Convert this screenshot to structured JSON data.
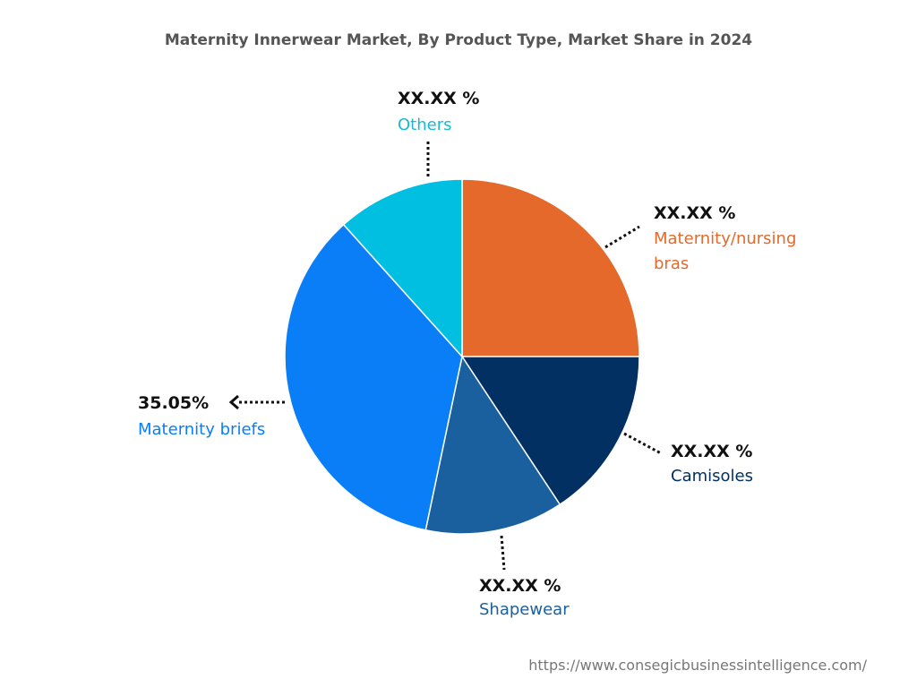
{
  "chart_data": {
    "type": "pie",
    "title": "Maternity Innerwear Market, By Product Type, Market Share in 2024",
    "start_angle": "12 o'clock",
    "direction": "clockwise",
    "slices": [
      {
        "name": "Maternity/nursing bras",
        "label_lines": [
          "Maternity/nursing",
          "bras"
        ],
        "value_label": "XX.XX %",
        "value": 25.0,
        "color": "#E4692A"
      },
      {
        "name": "Camisoles",
        "label_lines": [
          "Camisoles"
        ],
        "value_label": "XX.XX %",
        "value": 15.7,
        "color": "#023063"
      },
      {
        "name": "Shapewear",
        "label_lines": [
          "Shapewear"
        ],
        "value_label": "XX.XX %",
        "value": 12.6,
        "color": "#1A609E"
      },
      {
        "name": "Maternity briefs",
        "label_lines": [
          "Maternity briefs"
        ],
        "value_label": "35.05%",
        "value": 35.05,
        "color": "#0A7EF7"
      },
      {
        "name": "Others",
        "label_lines": [
          "Others"
        ],
        "value_label": "XX.XX %",
        "value": 11.65,
        "color": "#00BFE0"
      }
    ],
    "label_colors": [
      "#E4692A",
      "#023063",
      "#1A609E",
      "#0A7EF7",
      "#1EB8D0"
    ]
  },
  "watermark": "https://www.consegicbusinessintelligence.com/"
}
